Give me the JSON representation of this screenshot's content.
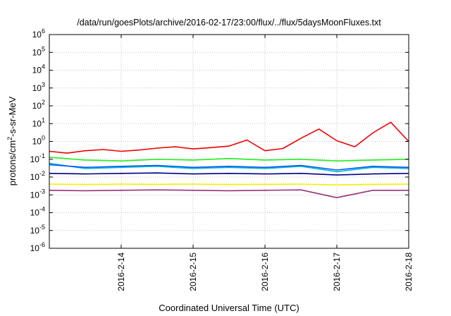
{
  "chart_data": {
    "type": "line",
    "title": "/data/run/goesPlots/archive/2016-02-17/23:00/flux/../flux/5daysMoonFluxes.txt",
    "xlabel": "Coordinated Universal Time (UTC)",
    "ylabel_parts": {
      "base": "protons/cm",
      "sup": "2",
      "rest": "-s-sr-MeV"
    },
    "y_scale": "log",
    "ylim": [
      1e-06,
      1000000.0
    ],
    "y_ticks": [
      {
        "base": "10",
        "exp": "-6",
        "value": 1e-06
      },
      {
        "base": "10",
        "exp": "-5",
        "value": 1e-05
      },
      {
        "base": "10",
        "exp": "-4",
        "value": 0.0001
      },
      {
        "base": "10",
        "exp": "-3",
        "value": 0.001
      },
      {
        "base": "10",
        "exp": "-2",
        "value": 0.01
      },
      {
        "base": "10",
        "exp": "-1",
        "value": 0.1
      },
      {
        "base": "10",
        "exp": "0",
        "value": 1
      },
      {
        "base": "10",
        "exp": "1",
        "value": 10.0
      },
      {
        "base": "10",
        "exp": "2",
        "value": 100.0
      },
      {
        "base": "10",
        "exp": "3",
        "value": 1000.0
      },
      {
        "base": "10",
        "exp": "4",
        "value": 10000.0
      },
      {
        "base": "10",
        "exp": "5",
        "value": 100000.0
      },
      {
        "base": "10",
        "exp": "6",
        "value": 1000000.0
      }
    ],
    "xlim": [
      "2016-02-13T00:00",
      "2016-02-18T00:00"
    ],
    "x_ticks": [
      {
        "label": "2016-2-14",
        "value": "2016-02-14T00:00"
      },
      {
        "label": "2016-2-15",
        "value": "2016-02-15T00:00"
      },
      {
        "label": "2016-2-16",
        "value": "2016-02-16T00:00"
      },
      {
        "label": "2016-2-17",
        "value": "2016-02-17T00:00"
      },
      {
        "label": "2016-2-18",
        "value": "2016-02-18T00:00"
      }
    ],
    "grid": true,
    "legend": "none",
    "series": [
      {
        "color": "#ee0000",
        "points": [
          [
            "2016-02-13T00:00",
            0.28
          ],
          [
            "2016-02-13T06:00",
            0.22
          ],
          [
            "2016-02-13T12:00",
            0.3
          ],
          [
            "2016-02-13T18:00",
            0.35
          ],
          [
            "2016-02-14T00:00",
            0.28
          ],
          [
            "2016-02-14T06:00",
            0.33
          ],
          [
            "2016-02-14T12:00",
            0.42
          ],
          [
            "2016-02-14T18:00",
            0.5
          ],
          [
            "2016-02-15T00:00",
            0.38
          ],
          [
            "2016-02-15T06:00",
            0.45
          ],
          [
            "2016-02-15T12:00",
            0.55
          ],
          [
            "2016-02-15T18:00",
            1.2
          ],
          [
            "2016-02-16T00:00",
            0.3
          ],
          [
            "2016-02-16T06:00",
            0.4
          ],
          [
            "2016-02-16T12:00",
            1.5
          ],
          [
            "2016-02-16T18:00",
            5.0
          ],
          [
            "2016-02-17T00:00",
            1.1
          ],
          [
            "2016-02-17T06:00",
            0.5
          ],
          [
            "2016-02-17T12:00",
            3.0
          ],
          [
            "2016-02-17T18:00",
            12.0
          ],
          [
            "2016-02-18T00:00",
            1.0
          ]
        ]
      },
      {
        "color": "#22ee22",
        "points": [
          [
            "2016-02-13T00:00",
            0.13
          ],
          [
            "2016-02-13T12:00",
            0.09
          ],
          [
            "2016-02-14T00:00",
            0.08
          ],
          [
            "2016-02-14T12:00",
            0.1
          ],
          [
            "2016-02-15T00:00",
            0.09
          ],
          [
            "2016-02-15T12:00",
            0.11
          ],
          [
            "2016-02-16T00:00",
            0.09
          ],
          [
            "2016-02-16T12:00",
            0.1
          ],
          [
            "2016-02-17T00:00",
            0.08
          ],
          [
            "2016-02-17T12:00",
            0.09
          ],
          [
            "2016-02-18T00:00",
            0.1
          ]
        ]
      },
      {
        "color": "#00bbcc",
        "points": [
          [
            "2016-02-13T00:00",
            0.06
          ],
          [
            "2016-02-13T12:00",
            0.03
          ],
          [
            "2016-02-14T00:00",
            0.035
          ],
          [
            "2016-02-14T12:00",
            0.04
          ],
          [
            "2016-02-15T00:00",
            0.03
          ],
          [
            "2016-02-15T12:00",
            0.035
          ],
          [
            "2016-02-16T00:00",
            0.03
          ],
          [
            "2016-02-16T12:00",
            0.04
          ],
          [
            "2016-02-17T00:00",
            0.02
          ],
          [
            "2016-02-17T12:00",
            0.035
          ],
          [
            "2016-02-18T00:00",
            0.03
          ]
        ]
      },
      {
        "color": "#0055ff",
        "points": [
          [
            "2016-02-13T00:00",
            0.05
          ],
          [
            "2016-02-13T12:00",
            0.035
          ],
          [
            "2016-02-14T00:00",
            0.04
          ],
          [
            "2016-02-14T12:00",
            0.045
          ],
          [
            "2016-02-15T00:00",
            0.035
          ],
          [
            "2016-02-15T12:00",
            0.04
          ],
          [
            "2016-02-16T00:00",
            0.035
          ],
          [
            "2016-02-16T12:00",
            0.045
          ],
          [
            "2016-02-17T00:00",
            0.025
          ],
          [
            "2016-02-17T12:00",
            0.04
          ],
          [
            "2016-02-18T00:00",
            0.035
          ]
        ]
      },
      {
        "color": "#000088",
        "points": [
          [
            "2016-02-13T00:00",
            0.016
          ],
          [
            "2016-02-13T12:00",
            0.015
          ],
          [
            "2016-02-14T00:00",
            0.016
          ],
          [
            "2016-02-14T12:00",
            0.017
          ],
          [
            "2016-02-15T00:00",
            0.015
          ],
          [
            "2016-02-15T12:00",
            0.016
          ],
          [
            "2016-02-16T00:00",
            0.015
          ],
          [
            "2016-02-16T12:00",
            0.016
          ],
          [
            "2016-02-17T00:00",
            0.013
          ],
          [
            "2016-02-17T12:00",
            0.015
          ],
          [
            "2016-02-18T00:00",
            0.016
          ]
        ]
      },
      {
        "color": "#f0f000",
        "points": [
          [
            "2016-02-13T00:00",
            0.004
          ],
          [
            "2016-02-13T12:00",
            0.0038
          ],
          [
            "2016-02-14T00:00",
            0.004
          ],
          [
            "2016-02-14T12:00",
            0.0039
          ],
          [
            "2016-02-15T00:00",
            0.004
          ],
          [
            "2016-02-15T12:00",
            0.0038
          ],
          [
            "2016-02-16T00:00",
            0.0039
          ],
          [
            "2016-02-16T12:00",
            0.004
          ],
          [
            "2016-02-17T00:00",
            0.0036
          ],
          [
            "2016-02-17T12:00",
            0.0039
          ],
          [
            "2016-02-18T00:00",
            0.004
          ]
        ]
      },
      {
        "color": "#993377",
        "points": [
          [
            "2016-02-13T00:00",
            0.0018
          ],
          [
            "2016-02-13T12:00",
            0.0017
          ],
          [
            "2016-02-14T00:00",
            0.0018
          ],
          [
            "2016-02-14T12:00",
            0.0019
          ],
          [
            "2016-02-15T00:00",
            0.0018
          ],
          [
            "2016-02-15T12:00",
            0.0017
          ],
          [
            "2016-02-16T00:00",
            0.0018
          ],
          [
            "2016-02-16T12:00",
            0.0019
          ],
          [
            "2016-02-17T00:00",
            0.0007
          ],
          [
            "2016-02-17T12:00",
            0.0018
          ],
          [
            "2016-02-18T00:00",
            0.0018
          ]
        ]
      }
    ]
  }
}
